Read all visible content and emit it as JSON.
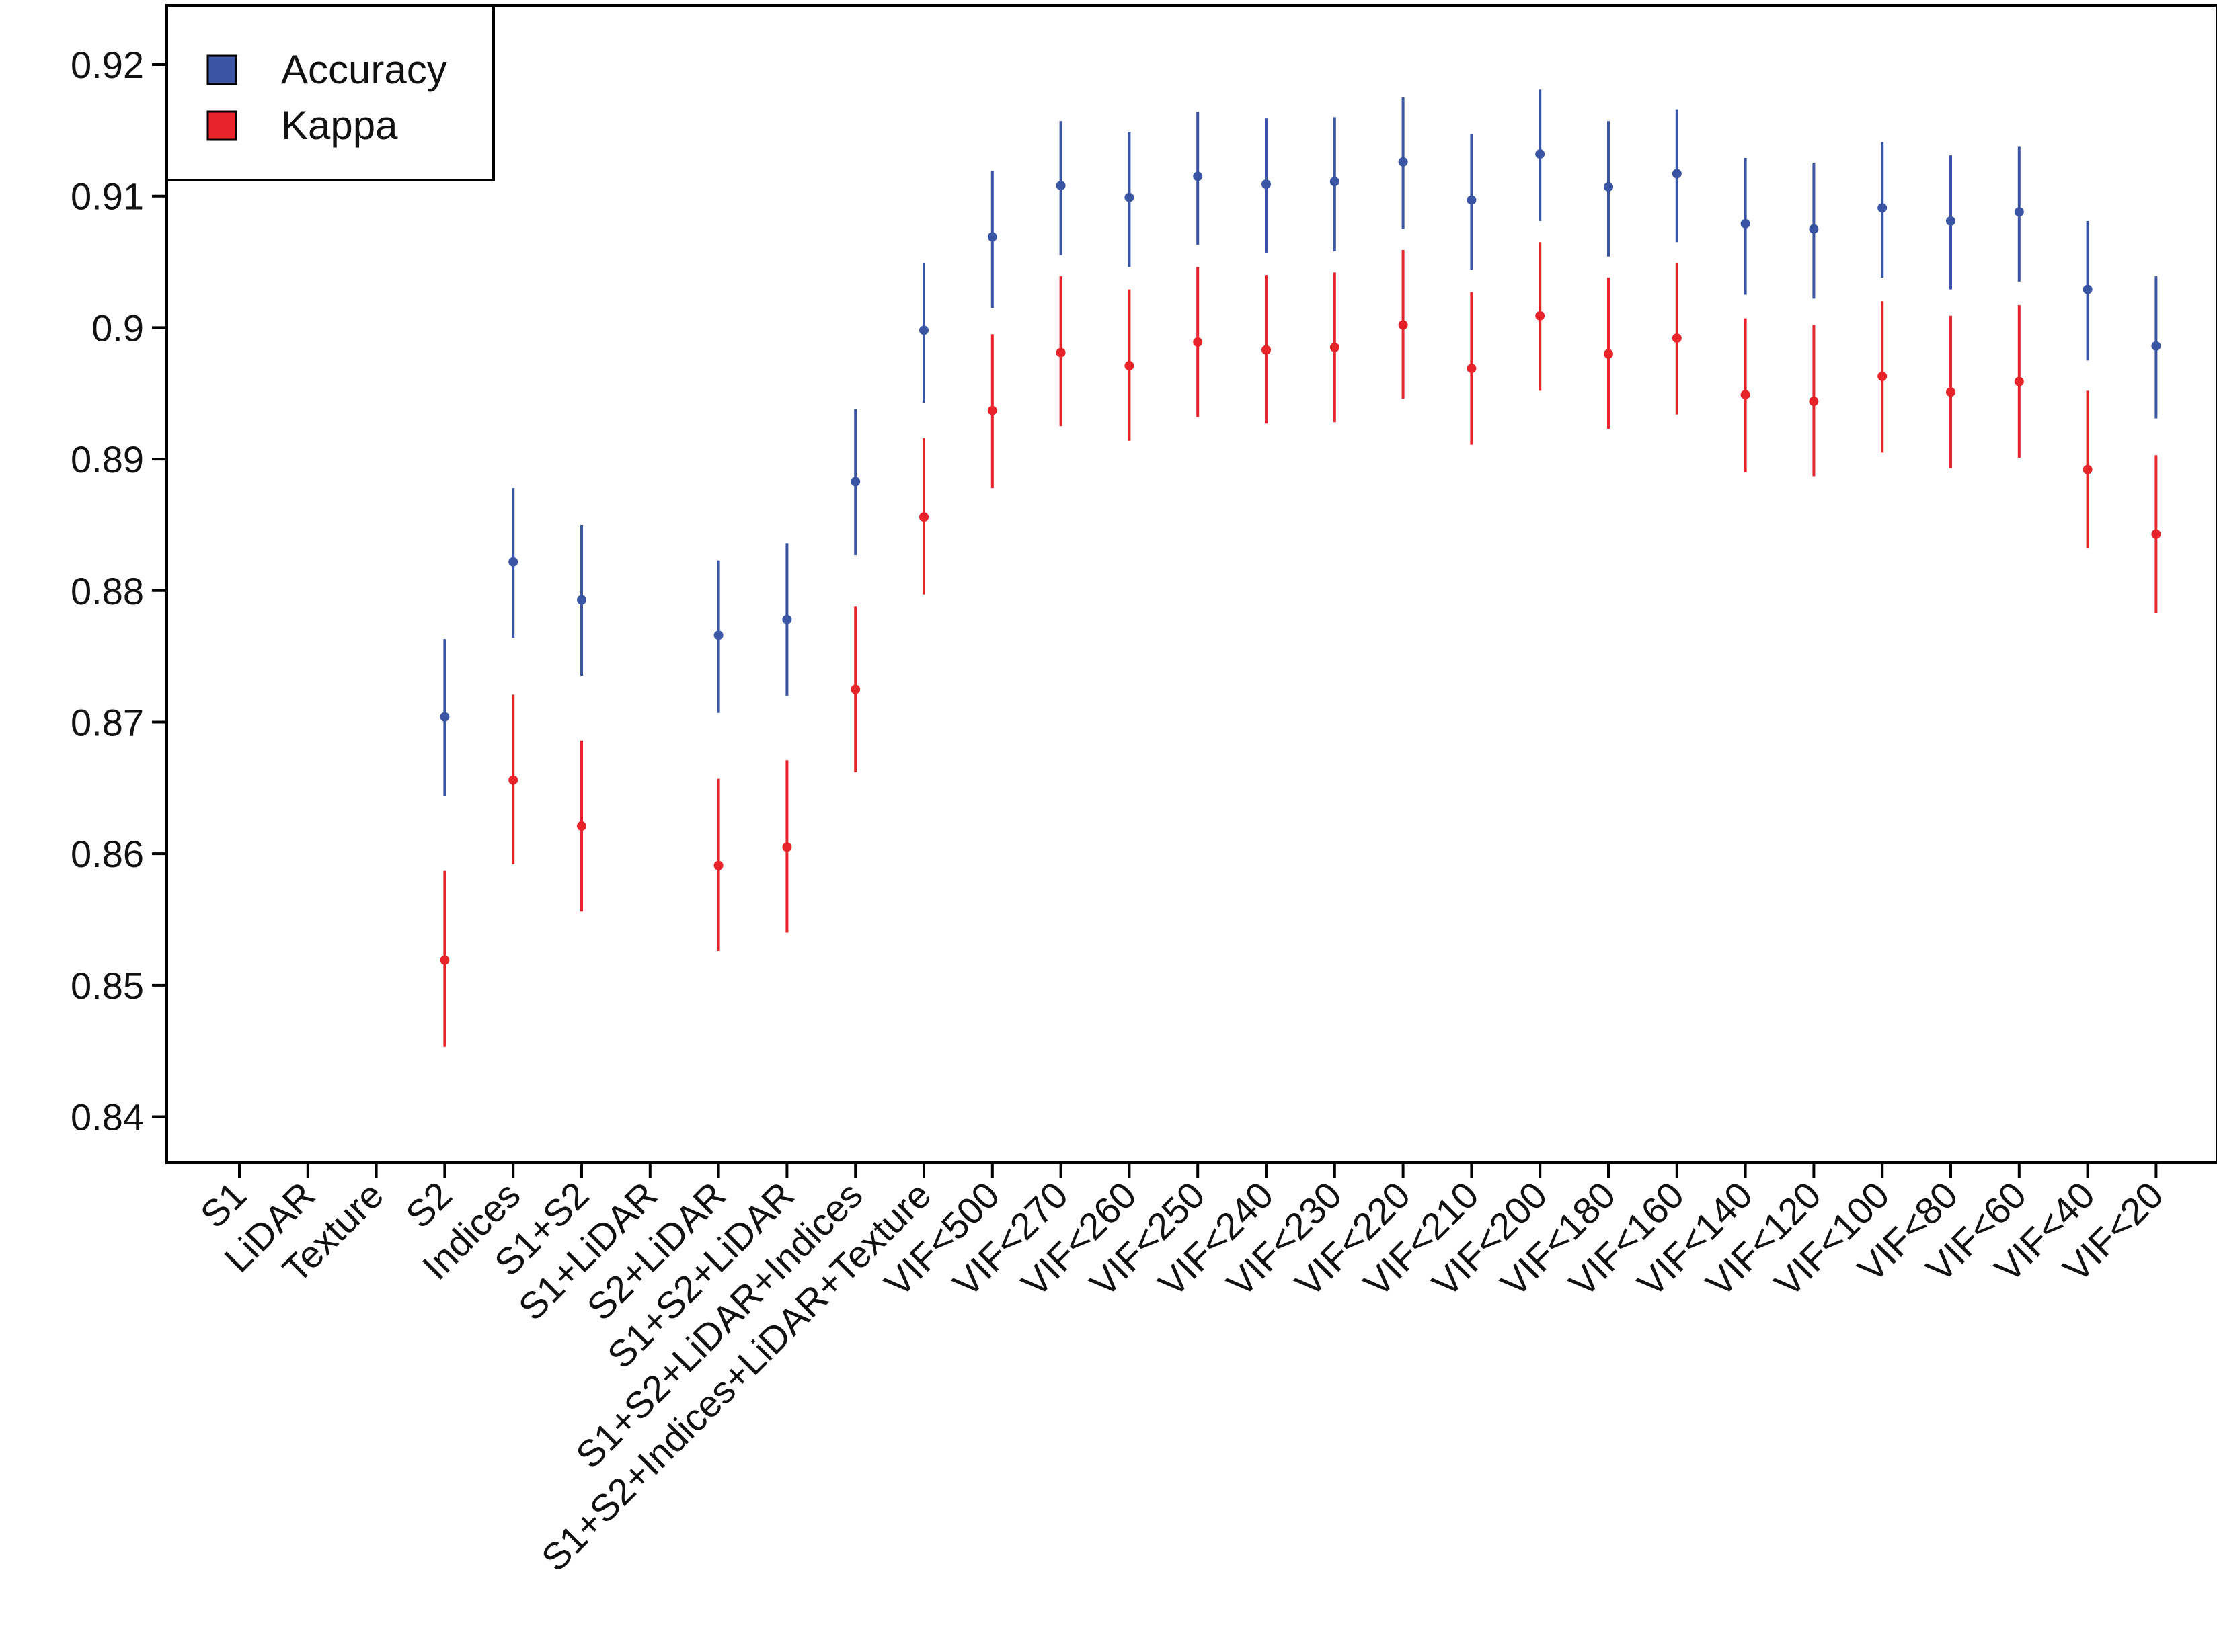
{
  "chart_data": {
    "type": "scatter",
    "subtype": "point-with-error-bars",
    "title": "",
    "xlabel": "",
    "ylabel": "",
    "ylim": [
      0.8365,
      0.9245
    ],
    "yticks": [
      0.84,
      0.85,
      0.86,
      0.87,
      0.88,
      0.89,
      0.9,
      0.91,
      0.92
    ],
    "ytick_labels": [
      "0.84",
      "0.85",
      "0.86",
      "0.87",
      "0.88",
      "0.89",
      "0.9",
      "0.91",
      "0.92"
    ],
    "grid": false,
    "legend_position": "top-left",
    "categories": [
      "S1",
      "LiDAR",
      "Texture",
      "S2",
      "Indices",
      "S1+S2",
      "S1+LiDAR",
      "S2+LiDAR",
      "S1+S2+LiDAR",
      "S1+S2+LiDAR+Indices",
      "S1+S2+Indices+LiDAR+Texture",
      "VIF<500",
      "VIF<270",
      "VIF<260",
      "VIF<250",
      "VIF<240",
      "VIF<230",
      "VIF<220",
      "VIF<210",
      "VIF<200",
      "VIF<180",
      "VIF<160",
      "VIF<140",
      "VIF<120",
      "VIF<100",
      "VIF<80",
      "VIF<60",
      "VIF<40",
      "VIF<20"
    ],
    "series": [
      {
        "name": "Accuracy",
        "color": "#3a55a4",
        "values": [
          null,
          null,
          null,
          0.8704,
          0.8822,
          0.8793,
          null,
          0.8766,
          0.8778,
          0.8883,
          0.8998,
          0.9069,
          0.9108,
          0.9099,
          0.9115,
          0.9109,
          0.9111,
          0.9126,
          0.9097,
          0.9132,
          0.9107,
          0.9117,
          0.9079,
          0.9075,
          0.9091,
          0.9081,
          0.9088,
          0.9029,
          0.8986
        ],
        "lower": [
          null,
          null,
          null,
          0.8644,
          0.8764,
          0.8735,
          null,
          0.8707,
          0.872,
          0.8827,
          0.8943,
          0.9015,
          0.9055,
          0.9046,
          0.9063,
          0.9057,
          0.9058,
          0.9075,
          0.9044,
          0.9081,
          0.9054,
          0.9065,
          0.9025,
          0.9022,
          0.9038,
          0.9029,
          0.9035,
          0.8975,
          0.8931
        ],
        "upper": [
          null,
          null,
          null,
          0.8763,
          0.8878,
          0.885,
          null,
          0.8823,
          0.8836,
          0.8938,
          0.9049,
          0.9119,
          0.9157,
          0.9149,
          0.9164,
          0.9159,
          0.916,
          0.9175,
          0.9147,
          0.9181,
          0.9157,
          0.9166,
          0.9129,
          0.9125,
          0.9141,
          0.9131,
          0.9138,
          0.9081,
          0.9039
        ]
      },
      {
        "name": "Kappa",
        "color": "#e8242b",
        "values": [
          null,
          null,
          null,
          0.8519,
          0.8656,
          0.8621,
          null,
          0.8591,
          0.8605,
          0.8725,
          0.8856,
          0.8937,
          0.8981,
          0.8971,
          0.8989,
          0.8983,
          0.8985,
          0.9002,
          0.8969,
          0.9009,
          0.898,
          0.8992,
          0.8949,
          0.8944,
          0.8963,
          0.8951,
          0.8959,
          0.8892,
          0.8843
        ],
        "lower": [
          null,
          null,
          null,
          0.8453,
          0.8592,
          0.8556,
          null,
          0.8526,
          0.854,
          0.8662,
          0.8797,
          0.8878,
          0.8925,
          0.8914,
          0.8932,
          0.8927,
          0.8928,
          0.8946,
          0.8911,
          0.8952,
          0.8923,
          0.8934,
          0.889,
          0.8887,
          0.8905,
          0.8893,
          0.8901,
          0.8832,
          0.8783
        ],
        "upper": [
          null,
          null,
          null,
          0.8587,
          0.8721,
          0.8686,
          null,
          0.8657,
          0.8671,
          0.8788,
          0.8916,
          0.8995,
          0.9039,
          0.9029,
          0.9046,
          0.904,
          0.9042,
          0.9059,
          0.9027,
          0.9065,
          0.9038,
          0.9049,
          0.9007,
          0.9002,
          0.902,
          0.9009,
          0.9017,
          0.8952,
          0.8903
        ]
      }
    ]
  }
}
